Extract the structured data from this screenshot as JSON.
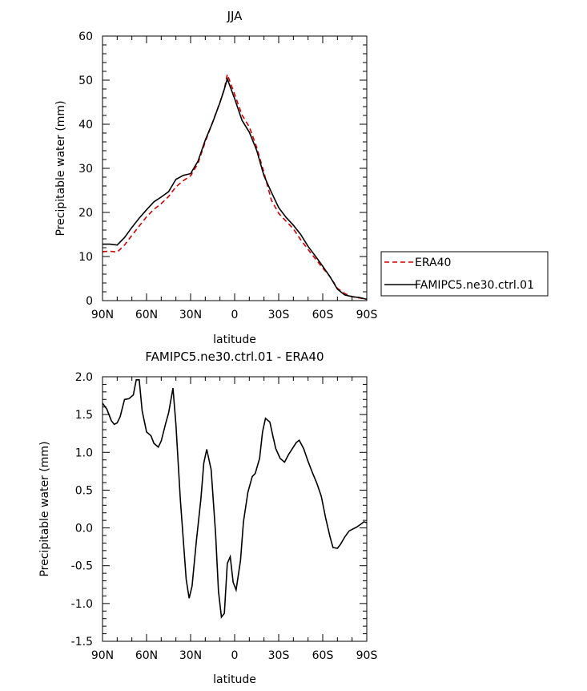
{
  "chart_data": [
    {
      "type": "line",
      "title": "JJA",
      "xlabel": "latitude",
      "ylabel": "Precipitable water (mm)",
      "xlim": [
        90,
        -90
      ],
      "ylim": [
        0,
        60
      ],
      "xticks": [
        90,
        60,
        30,
        0,
        -30,
        -60,
        -90
      ],
      "xtick_labels": [
        "90N",
        "60N",
        "30N",
        "0",
        "30S",
        "60S",
        "90S"
      ],
      "yticks": [
        0,
        10,
        20,
        30,
        40,
        50,
        60
      ],
      "ytick_labels": [
        "0",
        "10",
        "20",
        "30",
        "40",
        "50",
        "60"
      ],
      "legend_position": "right",
      "colors": {
        "ERA40": "#d40000",
        "FAMIPC5.ne30.ctrl.01": "#000000"
      },
      "series": [
        {
          "name": "ERA40",
          "style": "dashed",
          "x": [
            90,
            85,
            80,
            75,
            70,
            65,
            60,
            55,
            50,
            45,
            40,
            35,
            30,
            25,
            20,
            15,
            10,
            7,
            5,
            0,
            -5,
            -10,
            -15,
            -20,
            -25,
            -30,
            -35,
            -40,
            -45,
            -50,
            -55,
            -60,
            -65,
            -70,
            -75,
            -80,
            -85,
            -90
          ],
          "values": [
            11.1,
            11.2,
            11.0,
            12.6,
            14.8,
            16.9,
            19.0,
            20.7,
            22.0,
            23.6,
            25.8,
            27.2,
            28.3,
            31.1,
            36.0,
            40.5,
            45.0,
            48.0,
            51.3,
            46.8,
            42.1,
            39.4,
            34.8,
            29.0,
            22.8,
            19.8,
            18.0,
            16.3,
            13.8,
            11.6,
            9.5,
            7.4,
            5.4,
            2.8,
            1.6,
            0.9,
            0.6,
            0.3
          ]
        },
        {
          "name": "FAMIPC5.ne30.ctrl.01",
          "style": "solid",
          "x": [
            90,
            85,
            80,
            75,
            70,
            65,
            60,
            55,
            50,
            45,
            40,
            35,
            30,
            25,
            20,
            15,
            10,
            7,
            5,
            0,
            -5,
            -10,
            -15,
            -20,
            -25,
            -30,
            -35,
            -40,
            -45,
            -50,
            -55,
            -60,
            -65,
            -70,
            -75,
            -80,
            -85,
            -90
          ],
          "values": [
            12.8,
            12.8,
            12.6,
            14.3,
            16.6,
            18.7,
            20.6,
            22.4,
            23.5,
            24.7,
            27.5,
            28.4,
            28.8,
            31.6,
            36.4,
            40.4,
            44.9,
            48.0,
            50.3,
            45.8,
            40.9,
            38.2,
            34.1,
            28.3,
            24.6,
            21.1,
            18.9,
            17.1,
            15.0,
            12.3,
            10.1,
            7.8,
            5.4,
            2.6,
            1.3,
            0.9,
            0.7,
            0.3
          ]
        }
      ]
    },
    {
      "type": "line",
      "title": "FAMIPC5.ne30.ctrl.01 - ERA40",
      "xlabel": "latitude",
      "ylabel": "Precipitable water (mm)",
      "xlim": [
        90,
        -90
      ],
      "ylim": [
        -1.5,
        2.0
      ],
      "xticks": [
        90,
        60,
        30,
        0,
        -30,
        -60,
        -90
      ],
      "xtick_labels": [
        "90N",
        "60N",
        "30N",
        "0",
        "30S",
        "60S",
        "90S"
      ],
      "yticks": [
        -1.5,
        -1.0,
        -0.5,
        0.0,
        0.5,
        1.0,
        1.5,
        2.0
      ],
      "ytick_labels": [
        "-1.5",
        "-1.0",
        "-0.5",
        "0.0",
        "0.5",
        "1.0",
        "1.5",
        "2.0"
      ],
      "series": [
        {
          "name": "",
          "style": "solid",
          "x": [
            90,
            87,
            84,
            82,
            80,
            78,
            75,
            72,
            69,
            67,
            65,
            63,
            60,
            57,
            55,
            52,
            50,
            47,
            45,
            42,
            40,
            37,
            33,
            31,
            29,
            26,
            23,
            21,
            19,
            16,
            13,
            11,
            9,
            7,
            5,
            3,
            1,
            -1,
            -4,
            -6,
            -9,
            -12,
            -14,
            -17,
            -19,
            -21,
            -24,
            -26,
            -28,
            -31,
            -34,
            -37,
            -39,
            -42,
            -44,
            -47,
            -50,
            -53,
            -56,
            -59,
            -62,
            -65,
            -67,
            -70,
            -72,
            -75,
            -78,
            -80,
            -83,
            -86,
            -88,
            -90
          ],
          "values": [
            1.65,
            1.57,
            1.42,
            1.37,
            1.39,
            1.47,
            1.7,
            1.71,
            1.76,
            1.96,
            1.96,
            1.55,
            1.27,
            1.22,
            1.12,
            1.07,
            1.15,
            1.38,
            1.52,
            1.85,
            1.37,
            0.38,
            -0.68,
            -0.93,
            -0.77,
            -0.16,
            0.38,
            0.86,
            1.04,
            0.77,
            -0.07,
            -0.84,
            -1.18,
            -1.13,
            -0.47,
            -0.38,
            -0.72,
            -0.82,
            -0.43,
            0.08,
            0.47,
            0.68,
            0.72,
            0.92,
            1.27,
            1.45,
            1.4,
            1.22,
            1.05,
            0.92,
            0.87,
            0.98,
            1.04,
            1.13,
            1.16,
            1.05,
            0.88,
            0.73,
            0.59,
            0.42,
            0.13,
            -0.12,
            -0.26,
            -0.27,
            -0.22,
            -0.12,
            -0.04,
            -0.02,
            0.01,
            0.05,
            0.08,
            0.07
          ]
        }
      ]
    }
  ]
}
